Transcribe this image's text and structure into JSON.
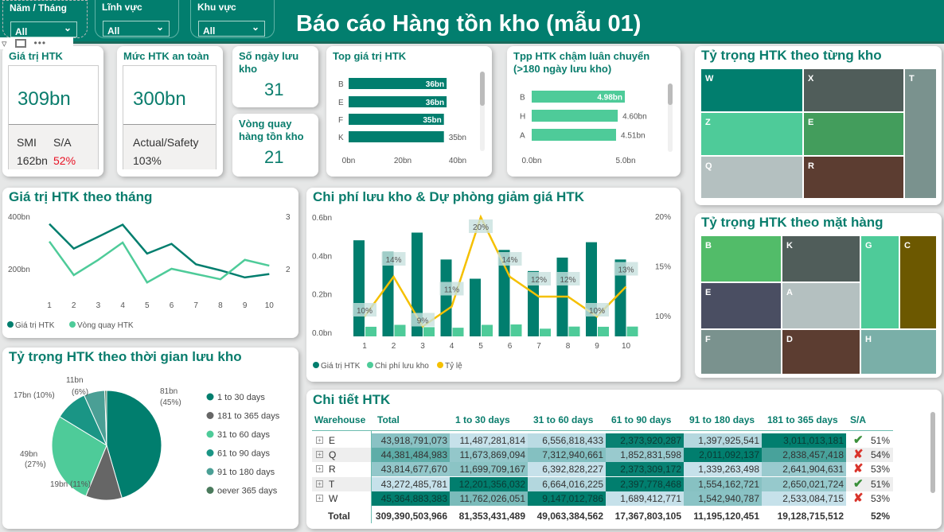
{
  "header": {
    "title": "Báo cáo Hàng tồn kho (mẫu 01)"
  },
  "slicers": [
    {
      "label": "Năm / Tháng",
      "value": "All"
    },
    {
      "label": "Lĩnh vực",
      "value": "All"
    },
    {
      "label": "Khu vực",
      "value": "All"
    }
  ],
  "kpi_total": {
    "title": "Giá trị HTK",
    "value": "309bn",
    "smi_label": "SMI",
    "sa_label": "S/A",
    "smi_value": "162bn",
    "sa_value": "52%",
    "sa_color": "#e81123"
  },
  "kpi_safety": {
    "title": "Mức HTK an toàn",
    "value": "300bn",
    "ratio_label": "Actual/Safety",
    "ratio_value": "103%"
  },
  "kpi_days": {
    "title": "Số ngày lưu kho",
    "value": "31"
  },
  "kpi_turnover": {
    "title": "Vòng quay hàng tồn kho",
    "value": "21"
  },
  "colors": {
    "teal": "#017e6e",
    "green": "#4ecb99",
    "yellow": "#f5c000",
    "header": "#027e6e"
  },
  "chart_data": [
    {
      "type": "bar",
      "orientation": "horizontal",
      "title": "Top giá trị HTK",
      "categories": [
        "B",
        "E",
        "F",
        "K"
      ],
      "values": [
        36,
        36,
        35,
        35
      ],
      "labels": [
        "36bn",
        "36bn",
        "35bn",
        "35bn"
      ],
      "xticks": [
        "0bn",
        "20bn",
        "40bn"
      ],
      "xlim": [
        0,
        40
      ]
    },
    {
      "type": "bar",
      "orientation": "horizontal",
      "title": "Tpp HTK chậm luân chuyển (>180 ngày lưu kho)",
      "categories": [
        "B",
        "H",
        "A"
      ],
      "values": [
        4.98,
        4.6,
        4.51
      ],
      "labels": [
        "4.98bn",
        "4.60bn",
        "4.51bn"
      ],
      "xticks": [
        "0.0bn",
        "5.0bn"
      ],
      "xlim": [
        0,
        5
      ]
    },
    {
      "type": "line",
      "title": "Giá trị HTK theo tháng",
      "x": [
        1,
        2,
        3,
        4,
        5,
        6,
        7,
        8,
        9,
        10
      ],
      "series": [
        {
          "name": "Giá trị HTK",
          "axis": "left",
          "values": [
            371,
            277,
            322,
            368,
            258,
            295,
            217,
            194,
            167,
            180
          ]
        },
        {
          "name": "Vòng quay HTK",
          "axis": "right",
          "values": [
            2.52,
            1.88,
            2.17,
            2.5,
            1.74,
            2.0,
            1.9,
            1.8,
            2.17,
            2.06
          ]
        }
      ],
      "yticks_left": [
        "400bn",
        "200bn"
      ],
      "yticks_right": [
        "3",
        "2"
      ]
    },
    {
      "type": "bar+line",
      "title": "Chi phí lưu kho & Dự phòng giảm giá HTK",
      "x": [
        1,
        2,
        3,
        4,
        5,
        6,
        7,
        8,
        9,
        10
      ],
      "series": [
        {
          "name": "Giá trị HTK",
          "values": [
            0.5,
            0.44,
            0.54,
            0.4,
            0.3,
            0.45,
            0.34,
            0.41,
            0.49,
            0.4
          ]
        },
        {
          "name": "Chi phí lưu kho",
          "values": [
            0.05,
            0.06,
            0.048,
            0.045,
            0.06,
            0.062,
            0.04,
            0.051,
            0.05,
            0.051
          ]
        },
        {
          "name": "Tỷ lệ",
          "axis": "right",
          "values": [
            10,
            14,
            9,
            11,
            20,
            14,
            12,
            12,
            10,
            13
          ],
          "labels": [
            "10%",
            "14%",
            "9%",
            "11%",
            "20%",
            "14%",
            "12%",
            "12%",
            "10%",
            "13%"
          ]
        }
      ],
      "yticks_left": [
        "0.6bn",
        "0.4bn",
        "0.2bn",
        "0.0bn"
      ],
      "yticks_right": [
        "20%",
        "15%",
        "10%"
      ]
    },
    {
      "type": "pie",
      "title": "Tỷ trọng HTK theo thời gian lưu kho",
      "slices": [
        {
          "name": "1 to 30 days",
          "value": 81,
          "label": "81bn",
          "pct": "(45%)",
          "color": "#017e6e"
        },
        {
          "name": "181 to 365 days",
          "value": 19,
          "label": "19bn (11%)",
          "pct": "",
          "color": "#666666"
        },
        {
          "name": "31 to 60 days",
          "value": 49,
          "label": "49bn",
          "pct": "(27%)",
          "color": "#4ecb99"
        },
        {
          "name": "61 to 90 days",
          "value": 17,
          "label": "17bn (10%)",
          "pct": "",
          "color": "#1a9585"
        },
        {
          "name": "91 to 180 days",
          "value": 11,
          "label": "11bn",
          "pct": "(6%)",
          "color": "#4a9f95"
        },
        {
          "name": "oever 365 days",
          "value": 1,
          "label": "",
          "pct": "",
          "color": "#4a7a5c"
        }
      ]
    }
  ],
  "treemap_kho": {
    "title": "Tỷ trọng HTK theo từng kho",
    "tiles": [
      {
        "label": "W",
        "color": "#017e6e"
      },
      {
        "label": "X",
        "color": "#505d5a"
      },
      {
        "label": "T",
        "color": "#7a928e"
      },
      {
        "label": "Z",
        "color": "#4ecb99"
      },
      {
        "label": "E",
        "color": "#439d5c"
      },
      {
        "label": "Q",
        "color": "#b4c0c0"
      },
      {
        "label": "R",
        "color": "#5c3d31"
      }
    ]
  },
  "treemap_mh": {
    "title": "Tỷ trọng HTK theo mặt hàng",
    "tiles": [
      {
        "label": "B",
        "color": "#52bc69"
      },
      {
        "label": "K",
        "color": "#505d5a"
      },
      {
        "label": "G",
        "color": "#4ecb99"
      },
      {
        "label": "C",
        "color": "#6c5800"
      },
      {
        "label": "E",
        "color": "#4a4e62"
      },
      {
        "label": "A",
        "color": "#b4c0c0"
      },
      {
        "label": "F",
        "color": "#7a928e"
      },
      {
        "label": "D",
        "color": "#5c3d31"
      },
      {
        "label": "H",
        "color": "#7aafa8"
      }
    ]
  },
  "table": {
    "title": "Chi tiết HTK",
    "columns": [
      "Warehouse",
      "Total",
      "1 to 30 days",
      "31 to 60 days",
      "61 to 90 days",
      "91 to 180 days",
      "181 to 365 days",
      "S/A"
    ],
    "rows": [
      {
        "wh": "E",
        "cells": [
          "43,918,791,073",
          "11,487,281,814",
          "6,556,818,433",
          "2,373,920,287",
          "1,397,925,541",
          "3,011,013,181"
        ],
        "status": "check",
        "sa": "51%"
      },
      {
        "wh": "Q",
        "cells": [
          "44,381,484,983",
          "11,673,869,094",
          "7,312,940,661",
          "1,852,831,598",
          "2,011,092,137",
          "2,838,457,418"
        ],
        "status": "cross",
        "sa": "54%"
      },
      {
        "wh": "R",
        "cells": [
          "43,814,677,670",
          "11,699,709,167",
          "6,392,828,227",
          "2,373,309,172",
          "1,339,263,498",
          "2,641,904,631"
        ],
        "status": "cross",
        "sa": "53%"
      },
      {
        "wh": "T",
        "cells": [
          "43,272,485,781",
          "12,201,356,032",
          "6,664,016,225",
          "2,397,778,468",
          "1,554,162,721",
          "2,650,021,724"
        ],
        "status": "check",
        "sa": "51%"
      },
      {
        "wh": "W",
        "cells": [
          "45,364,883,383",
          "11,762,026,051",
          "9,147,012,786",
          "1,689,412,771",
          "1,542,940,787",
          "2,533,084,715"
        ],
        "status": "cross",
        "sa": "53%"
      }
    ],
    "total": {
      "label": "Total",
      "cells": [
        "309,390,503,966",
        "81,353,431,489",
        "49,063,384,562",
        "17,367,803,105",
        "11,195,120,451",
        "19,128,715,512"
      ],
      "sa": "52%"
    }
  }
}
